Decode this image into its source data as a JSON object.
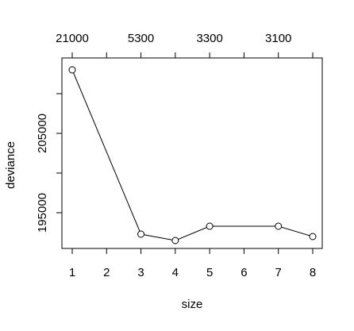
{
  "chart_data": {
    "type": "line",
    "title": "",
    "xlabel": "size",
    "ylabel": "deviance",
    "x": [
      1,
      3,
      4,
      5,
      7,
      8
    ],
    "y": [
      213000,
      192300,
      191500,
      193300,
      193300,
      192000
    ],
    "xlim": [
      1,
      8
    ],
    "ylim": [
      190500,
      214500
    ],
    "x_ticks": [
      "1",
      "2",
      "3",
      "4",
      "5",
      "6",
      "7",
      "8"
    ],
    "y_ticks": [
      {
        "value": 195000,
        "label": "195000"
      },
      {
        "value": 200000,
        "label": ""
      },
      {
        "value": 205000,
        "label": "205000"
      },
      {
        "value": 210000,
        "label": ""
      }
    ],
    "top_axis": {
      "ticks": [
        1,
        2,
        3,
        4,
        5,
        6,
        7,
        8
      ],
      "labels": [
        {
          "x": 1,
          "label": "21000"
        },
        {
          "x": 3,
          "label": "5300"
        },
        {
          "x": 5,
          "label": "3300"
        },
        {
          "x": 7,
          "label": "3100"
        }
      ]
    },
    "marker": "open-circle",
    "grid": false,
    "colors": {
      "line": "#000000",
      "marker_fill": "#ffffff",
      "axis": "#000000"
    }
  }
}
